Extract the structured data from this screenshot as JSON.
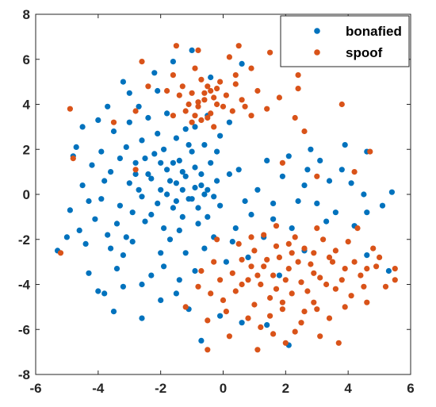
{
  "chart_data": {
    "type": "scatter",
    "title": "",
    "xlabel": "",
    "ylabel": "",
    "xlim": [
      -6,
      6
    ],
    "ylim": [
      -8,
      8
    ],
    "xticks": [
      -6,
      -4,
      -2,
      0,
      2,
      4,
      6
    ],
    "yticks": [
      -8,
      -6,
      -4,
      -2,
      0,
      2,
      4,
      6,
      8
    ],
    "grid": false,
    "legend_position": "top-right",
    "series": [
      {
        "name": "bonafied",
        "color": "#0072BD",
        "points": [
          [
            -1.5,
            0.5
          ],
          [
            -1.2,
            0.8
          ],
          [
            -0.9,
            0.3
          ],
          [
            -1.8,
            1.1
          ],
          [
            -1.1,
            -0.2
          ],
          [
            -2.0,
            0.2
          ],
          [
            -0.7,
            0.9
          ],
          [
            -1.4,
            1.5
          ],
          [
            -2.3,
            0.7
          ],
          [
            -1.6,
            -0.6
          ],
          [
            -0.5,
            0.2
          ],
          [
            -1.0,
            1.9
          ],
          [
            -2.6,
            -0.1
          ],
          [
            -1.3,
            -1.0
          ],
          [
            -0.4,
            1.4
          ],
          [
            -2.2,
            1.8
          ],
          [
            -3.0,
            0.5
          ],
          [
            -0.8,
            -1.3
          ],
          [
            -1.9,
            -1.5
          ],
          [
            -2.8,
            1.4
          ],
          [
            -0.2,
            0.6
          ],
          [
            -3.3,
            -0.5
          ],
          [
            -1.5,
            2.5
          ],
          [
            -2.5,
            -1.2
          ],
          [
            -0.6,
            2.2
          ],
          [
            -3.6,
            1.0
          ],
          [
            -1.7,
            -2.0
          ],
          [
            -0.1,
            -0.5
          ],
          [
            -3.1,
            2.1
          ],
          [
            -2.1,
            2.7
          ],
          [
            -3.9,
            -0.2
          ],
          [
            -0.3,
            -1.9
          ],
          [
            -4.2,
            1.3
          ],
          [
            -2.9,
            -2.1
          ],
          [
            -1.2,
            -2.6
          ],
          [
            -3.5,
            2.8
          ],
          [
            -2.4,
            3.4
          ],
          [
            -4.5,
            0.4
          ],
          [
            -4.1,
            -1.1
          ],
          [
            -3.2,
            -2.7
          ],
          [
            -1.9,
            -3.2
          ],
          [
            -4.7,
            2.1
          ],
          [
            -0.9,
            3.0
          ],
          [
            -3.7,
            -1.8
          ],
          [
            -2.7,
            3.9
          ],
          [
            -1.4,
            -3.8
          ],
          [
            -4.4,
            -2.2
          ],
          [
            -3.4,
            -3.3
          ],
          [
            -4.9,
            -0.7
          ],
          [
            -2.6,
            -4.0
          ],
          [
            -4.0,
            3.3
          ],
          [
            -3.0,
            4.5
          ],
          [
            -2.2,
            5.4
          ],
          [
            -1.6,
            5.9
          ],
          [
            -1.0,
            6.4
          ],
          [
            -3.8,
            -4.4
          ],
          [
            -3.5,
            -5.2
          ],
          [
            -2.6,
            -5.5
          ],
          [
            -2.0,
            -4.7
          ],
          [
            -1.1,
            -5.1
          ],
          [
            -0.7,
            -6.5
          ],
          [
            -0.1,
            -5.4
          ],
          [
            0.6,
            -5.7
          ],
          [
            1.4,
            -5.8
          ],
          [
            2.1,
            -6.7
          ],
          [
            2.6,
            -2.5
          ],
          [
            0.3,
            -2.1
          ],
          [
            0.9,
            -0.9
          ],
          [
            1.1,
            0.2
          ],
          [
            0.5,
            1.1
          ],
          [
            1.6,
            -0.4
          ],
          [
            2.2,
            -1.5
          ],
          [
            1.9,
            0.8
          ],
          [
            2.6,
            0.4
          ],
          [
            3.0,
            -0.4
          ],
          [
            3.4,
            0.6
          ],
          [
            3.1,
            1.5
          ],
          [
            3.8,
            1.1
          ],
          [
            4.1,
            0.5
          ],
          [
            4.5,
            0.0
          ],
          [
            3.6,
            -0.8
          ],
          [
            4.2,
            -1.4
          ],
          [
            4.6,
            -0.8
          ],
          [
            5.1,
            -0.5
          ],
          [
            5.4,
            0.1
          ],
          [
            3.9,
            2.2
          ],
          [
            4.6,
            1.9
          ],
          [
            2.8,
            2.0
          ],
          [
            2.1,
            1.7
          ],
          [
            -5.3,
            -2.5
          ],
          [
            -5.0,
            -1.9
          ],
          [
            -4.8,
            1.7
          ],
          [
            -4.5,
            3.0
          ],
          [
            -3.2,
            5.0
          ],
          [
            -0.4,
            5.2
          ],
          [
            0.6,
            5.8
          ],
          [
            4.6,
            -2.7
          ],
          [
            5.3,
            -3.4
          ],
          [
            1.8,
            -3.6
          ],
          [
            0.8,
            -2.8
          ],
          [
            -0.6,
            0.0
          ],
          [
            -1.8,
            0.0
          ],
          [
            -1.3,
            0.2
          ],
          [
            -0.9,
            1.2
          ],
          [
            -2.1,
            -0.4
          ],
          [
            -1.6,
            1.4
          ],
          [
            -0.8,
            -0.6
          ],
          [
            -2.4,
            0.9
          ],
          [
            -1.1,
            2.2
          ],
          [
            -1.9,
            2.0
          ],
          [
            -2.7,
            0.2
          ],
          [
            -0.5,
            -1.0
          ],
          [
            -2.3,
            -0.9
          ],
          [
            -3.3,
            1.6
          ],
          [
            -0.2,
            1.9
          ],
          [
            -1.4,
            -1.6
          ],
          [
            -3.8,
            0.6
          ],
          [
            -2.9,
            -0.8
          ],
          [
            -0.3,
            -0.1
          ],
          [
            -1.0,
            -0.2
          ],
          [
            -1.7,
            0.6
          ],
          [
            -2.5,
            1.6
          ],
          [
            -1.3,
            1.0
          ],
          [
            -0.7,
            0.4
          ],
          [
            -2.0,
            1.4
          ],
          [
            -1.5,
            -0.3
          ],
          [
            -2.8,
            0.9
          ],
          [
            -3.4,
            -1.3
          ],
          [
            -4.3,
            -0.3
          ],
          [
            -3.9,
            1.9
          ],
          [
            -2.6,
            2.4
          ],
          [
            -1.2,
            2.9
          ],
          [
            -0.1,
            2.6
          ],
          [
            0.2,
            0.9
          ],
          [
            0.7,
            -0.3
          ],
          [
            0.4,
            -1.5
          ],
          [
            -0.6,
            -2.4
          ],
          [
            -2.0,
            -2.6
          ],
          [
            -3.1,
            -1.9
          ],
          [
            -3.6,
            -2.4
          ],
          [
            -4.6,
            -1.6
          ],
          [
            -2.3,
            -3.6
          ],
          [
            -1.5,
            -4.4
          ],
          [
            -0.9,
            -3.4
          ],
          [
            -3.2,
            -4.1
          ],
          [
            -4.3,
            -3.5
          ],
          [
            -4.0,
            -4.3
          ],
          [
            0.1,
            -3.0
          ],
          [
            1.3,
            -1.9
          ],
          [
            1.6,
            -1.1
          ],
          [
            2.4,
            -0.3
          ],
          [
            3.3,
            -1.2
          ],
          [
            2.7,
            1.1
          ],
          [
            1.4,
            1.5
          ],
          [
            0.2,
            3.2
          ],
          [
            -1.8,
            3.6
          ],
          [
            -3.0,
            3.2
          ],
          [
            -2.1,
            4.6
          ],
          [
            -3.7,
            3.9
          ],
          [
            -0.5,
            3.5
          ]
        ]
      },
      {
        "name": "spoof",
        "color": "#D95319",
        "points": [
          [
            1.6,
            -3.6
          ],
          [
            2.1,
            -3.3
          ],
          [
            1.2,
            -4.0
          ],
          [
            2.5,
            -3.9
          ],
          [
            1.8,
            -2.8
          ],
          [
            0.9,
            -3.2
          ],
          [
            2.8,
            -3.1
          ],
          [
            1.5,
            -4.6
          ],
          [
            2.2,
            -4.4
          ],
          [
            0.6,
            -4.0
          ],
          [
            3.1,
            -3.7
          ],
          [
            1.0,
            -2.5
          ],
          [
            2.6,
            -2.4
          ],
          [
            3.4,
            -2.8
          ],
          [
            0.3,
            -3.5
          ],
          [
            1.9,
            -5.1
          ],
          [
            2.9,
            -4.8
          ],
          [
            3.6,
            -4.2
          ],
          [
            0.5,
            -2.2
          ],
          [
            1.3,
            -1.8
          ],
          [
            2.3,
            -1.9
          ],
          [
            3.2,
            -2.0
          ],
          [
            3.9,
            -3.3
          ],
          [
            4.1,
            -4.5
          ],
          [
            0.0,
            -4.7
          ],
          [
            0.8,
            -5.5
          ],
          [
            2.5,
            -5.7
          ],
          [
            3.4,
            -5.5
          ],
          [
            4.4,
            -3.6
          ],
          [
            -0.3,
            -3.0
          ],
          [
            4.0,
            -2.1
          ],
          [
            4.6,
            -4.8
          ],
          [
            3.1,
            -6.3
          ],
          [
            1.6,
            -6.2
          ],
          [
            0.2,
            -6.3
          ],
          [
            -0.8,
            -4.1
          ],
          [
            -1.2,
            -5.0
          ],
          [
            4.9,
            -3.2
          ],
          [
            5.2,
            -4.1
          ],
          [
            4.8,
            -2.4
          ],
          [
            -0.5,
            -5.6
          ],
          [
            2.0,
            -6.6
          ],
          [
            3.7,
            -6.6
          ],
          [
            1.1,
            -6.9
          ],
          [
            -0.2,
            -2.0
          ],
          [
            1.7,
            -1.4
          ],
          [
            3.0,
            -1.5
          ],
          [
            4.3,
            -1.5
          ],
          [
            5.0,
            -2.8
          ],
          [
            -0.6,
            4.2
          ],
          [
            -0.4,
            4.6
          ],
          [
            -0.8,
            3.9
          ],
          [
            -0.2,
            4.0
          ],
          [
            -1.0,
            4.5
          ],
          [
            -0.5,
            3.4
          ],
          [
            0.1,
            4.4
          ],
          [
            -1.2,
            3.7
          ],
          [
            -0.7,
            5.1
          ],
          [
            0.3,
            3.7
          ],
          [
            -1.4,
            4.4
          ],
          [
            -0.1,
            5.0
          ],
          [
            0.6,
            4.2
          ],
          [
            -1.0,
            3.2
          ],
          [
            -1.6,
            3.5
          ],
          [
            0.4,
            5.3
          ],
          [
            -0.3,
            3.0
          ],
          [
            0.9,
            3.5
          ],
          [
            -1.8,
            4.6
          ],
          [
            -0.9,
            5.6
          ],
          [
            0.2,
            6.1
          ],
          [
            1.1,
            4.6
          ],
          [
            -1.6,
            5.3
          ],
          [
            -2.4,
            4.8
          ],
          [
            0.9,
            5.6
          ],
          [
            1.4,
            3.8
          ],
          [
            1.8,
            4.3
          ],
          [
            -2.8,
            3.7
          ],
          [
            2.4,
            4.7
          ],
          [
            2.3,
            3.4
          ],
          [
            -2.6,
            5.9
          ],
          [
            -1.5,
            6.6
          ],
          [
            -0.8,
            6.4
          ],
          [
            0.5,
            6.6
          ],
          [
            1.5,
            6.3
          ],
          [
            2.4,
            5.3
          ],
          [
            -2.8,
            1.1
          ],
          [
            -3.5,
            3.2
          ],
          [
            -4.9,
            3.8
          ],
          [
            -4.8,
            1.6
          ],
          [
            4.7,
            1.9
          ],
          [
            3.8,
            4.0
          ],
          [
            2.6,
            2.8
          ],
          [
            1.9,
            1.4
          ],
          [
            3.0,
            0.8
          ],
          [
            4.2,
            1.0
          ],
          [
            5.5,
            -3.3
          ],
          [
            5.5,
            -3.8
          ],
          [
            -5.2,
            -2.6
          ],
          [
            -0.5,
            -6.9
          ],
          [
            1.3,
            -3.2
          ],
          [
            2.0,
            -3.8
          ],
          [
            1.7,
            -4.2
          ],
          [
            2.4,
            -3.0
          ],
          [
            1.1,
            -3.6
          ],
          [
            2.9,
            -3.5
          ],
          [
            1.4,
            -2.9
          ],
          [
            2.2,
            -2.6
          ],
          [
            0.8,
            -3.8
          ],
          [
            3.3,
            -4.0
          ],
          [
            1.9,
            -4.8
          ],
          [
            2.7,
            -4.3
          ],
          [
            0.4,
            -4.3
          ],
          [
            3.5,
            -3.0
          ],
          [
            1.0,
            -4.9
          ],
          [
            2.6,
            -5.2
          ],
          [
            3.8,
            -3.8
          ],
          [
            0.6,
            -2.9
          ],
          [
            -0.1,
            -3.8
          ],
          [
            4.2,
            -3.0
          ],
          [
            1.5,
            -5.4
          ],
          [
            3.0,
            -5.1
          ],
          [
            2.1,
            -2.2
          ],
          [
            2.9,
            -2.6
          ],
          [
            1.7,
            -2.3
          ],
          [
            0.9,
            -1.9
          ],
          [
            3.6,
            -2.5
          ],
          [
            4.5,
            -4.1
          ],
          [
            0.1,
            -5.2
          ],
          [
            3.9,
            -5.0
          ],
          [
            -0.4,
            -4.4
          ],
          [
            1.2,
            -5.9
          ],
          [
            2.3,
            -6.1
          ],
          [
            4.6,
            -3.3
          ],
          [
            -0.7,
            -3.4
          ],
          [
            -0.6,
            4.5
          ],
          [
            -0.3,
            4.3
          ],
          [
            -0.8,
            4.1
          ],
          [
            -0.5,
            4.8
          ],
          [
            -1.1,
            4.0
          ],
          [
            0.0,
            3.9
          ],
          [
            -0.4,
            3.6
          ],
          [
            -0.7,
            3.3
          ],
          [
            -1.3,
            4.8
          ],
          [
            -0.2,
            4.7
          ],
          [
            0.4,
            4.9
          ],
          [
            -0.9,
            3.5
          ],
          [
            0.7,
            3.9
          ]
        ]
      }
    ]
  }
}
